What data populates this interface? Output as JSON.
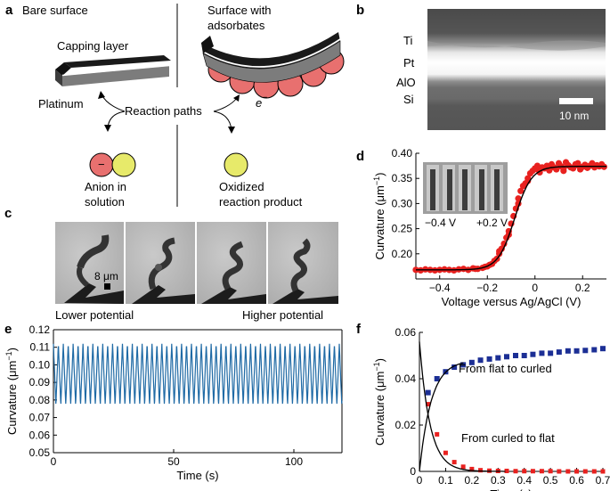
{
  "panel_labels": {
    "a": "a",
    "b": "b",
    "c": "c",
    "d": "d",
    "e": "e",
    "f": "f"
  },
  "panel_a": {
    "bare_surface": "Bare surface",
    "surface_with_adsorbates_1": "Surface with",
    "surface_with_adsorbates_2": "adsorbates",
    "capping_layer": "Capping layer",
    "platinum": "Platinum",
    "reaction_paths": "Reaction paths",
    "electron": "e",
    "electron_sup": "−",
    "anion_minus": "−",
    "anion_1": "Anion in",
    "anion_2": "solution",
    "oxidized_1": "Oxidized",
    "oxidized_2": "reaction product",
    "colors": {
      "anion": "#e8706f",
      "product": "#e7ea6a",
      "layer_dark": "#1a1a1a",
      "layer_grey": "#7c7c7c"
    }
  },
  "panel_b": {
    "ti": "Ti",
    "pt": "Pt",
    "alo": "AlO",
    "si": "Si",
    "scale": "10 nm"
  },
  "panel_c": {
    "scale": "8 μm",
    "lower": "Lower potential",
    "higher": "Higher potential"
  },
  "chart_data": [
    {
      "id": "d",
      "type": "scatter",
      "xlabel": "Voltage versus Ag/AgCl (V)",
      "ylabel": "Curvature (μm",
      "ylabel_sup": "−1",
      "ylabel_close": ")",
      "xlim": [
        -0.5,
        0.3
      ],
      "ylim": [
        0.15,
        0.4
      ],
      "xticks": [
        -0.4,
        -0.2,
        0,
        0.2
      ],
      "xtick_labels": [
        "−0.4",
        "−0.2",
        "0",
        "0.2"
      ],
      "yticks": [
        0.2,
        0.25,
        0.3,
        0.35,
        0.4
      ],
      "ytick_labels": [
        "0.20",
        "0.25",
        "0.30",
        "0.35",
        "0.40"
      ],
      "inset_left": "−0.4 V",
      "inset_right": "+0.2 V",
      "series": [
        {
          "name": "data",
          "color": "#e8211f",
          "x": [
            -0.5,
            -0.48,
            -0.46,
            -0.44,
            -0.42,
            -0.4,
            -0.38,
            -0.36,
            -0.34,
            -0.32,
            -0.3,
            -0.28,
            -0.26,
            -0.24,
            -0.22,
            -0.2,
            -0.19,
            -0.18,
            -0.17,
            -0.16,
            -0.15,
            -0.14,
            -0.13,
            -0.12,
            -0.11,
            -0.1,
            -0.09,
            -0.08,
            -0.07,
            -0.06,
            -0.05,
            -0.04,
            -0.03,
            -0.02,
            -0.01,
            0.0,
            0.01,
            0.02,
            0.03,
            0.04,
            0.05,
            0.06,
            0.07,
            0.08,
            0.09,
            0.1,
            0.11,
            0.12,
            0.13,
            0.14,
            0.15,
            0.16,
            0.17,
            0.18,
            0.19,
            0.2,
            0.21,
            0.22,
            0.23,
            0.24,
            0.25,
            0.26,
            0.27,
            0.28,
            0.29,
            -0.25,
            -0.21,
            -0.15,
            -0.11,
            -0.07,
            -0.03,
            0.01,
            0.06,
            0.12,
            0.18,
            0.24
          ],
          "y": [
            0.168,
            0.167,
            0.169,
            0.168,
            0.167,
            0.168,
            0.169,
            0.168,
            0.167,
            0.169,
            0.17,
            0.168,
            0.171,
            0.17,
            0.172,
            0.175,
            0.178,
            0.18,
            0.186,
            0.19,
            0.2,
            0.21,
            0.22,
            0.232,
            0.245,
            0.26,
            0.275,
            0.29,
            0.31,
            0.325,
            0.335,
            0.34,
            0.35,
            0.36,
            0.365,
            0.37,
            0.368,
            0.362,
            0.372,
            0.37,
            0.375,
            0.366,
            0.378,
            0.372,
            0.368,
            0.38,
            0.374,
            0.37,
            0.382,
            0.376,
            0.372,
            0.37,
            0.378,
            0.376,
            0.368,
            0.373,
            0.377,
            0.371,
            0.375,
            0.38,
            0.372,
            0.376,
            0.374,
            0.378,
            0.373,
            0.17,
            0.174,
            0.205,
            0.238,
            0.3,
            0.345,
            0.375,
            0.368,
            0.365,
            0.38,
            0.378
          ]
        },
        {
          "name": "fit",
          "color": "#000000",
          "type": "sigmoid",
          "low": 0.168,
          "high": 0.374,
          "center": -0.085,
          "width": 0.035
        }
      ]
    },
    {
      "id": "e",
      "type": "line",
      "xlabel": "Time (s)",
      "ylabel": "Curvature (μm",
      "ylabel_sup": "−1",
      "ylabel_close": ")",
      "xlim": [
        0,
        120
      ],
      "ylim": [
        0.05,
        0.12
      ],
      "xticks": [
        0,
        50,
        100
      ],
      "xtick_labels": [
        "0",
        "50",
        "100"
      ],
      "yticks": [
        0.05,
        0.06,
        0.07,
        0.08,
        0.09,
        0.1,
        0.11,
        0.12
      ],
      "ytick_labels": [
        "0.05",
        "0.06",
        "0.07",
        "0.08",
        "0.09",
        "0.10",
        "0.11",
        "0.12"
      ],
      "series": [
        {
          "name": "oscillation",
          "color": "#1f6aa5",
          "period_s": 2.05,
          "max": 0.112,
          "min": 0.077
        }
      ]
    },
    {
      "id": "f",
      "type": "scatter",
      "xlabel": "Time (s)",
      "ylabel": "Curvature (μm",
      "ylabel_sup": "−1",
      "ylabel_close": ")",
      "xlim": [
        0,
        0.7
      ],
      "ylim": [
        0,
        0.06
      ],
      "xticks": [
        0,
        0.1,
        0.2,
        0.3,
        0.4,
        0.5,
        0.6,
        0.7
      ],
      "xtick_labels": [
        "0",
        "0.1",
        "0.2",
        "0.3",
        "0.4",
        "0.5",
        "0.6",
        "0.7"
      ],
      "yticks": [
        0,
        0.02,
        0.04,
        0.06
      ],
      "ytick_labels": [
        "0",
        "0.02",
        "0.04",
        "0.06"
      ],
      "annotation_up": "From flat to curled",
      "annotation_down": "From curled to flat",
      "series": [
        {
          "name": "From flat to curled",
          "color": "#1c2f95",
          "x": [
            0.033,
            0.067,
            0.1,
            0.133,
            0.167,
            0.2,
            0.233,
            0.267,
            0.3,
            0.333,
            0.367,
            0.4,
            0.433,
            0.467,
            0.5,
            0.533,
            0.567,
            0.6,
            0.633,
            0.667,
            0.7
          ],
          "y": [
            0.034,
            0.04,
            0.043,
            0.045,
            0.046,
            0.047,
            0.048,
            0.0485,
            0.049,
            0.0495,
            0.05,
            0.05,
            0.0505,
            0.051,
            0.051,
            0.0515,
            0.052,
            0.052,
            0.0522,
            0.0525,
            0.053
          ]
        },
        {
          "name": "From curled to flat",
          "color": "#e8211f",
          "x": [
            0.033,
            0.067,
            0.1,
            0.133,
            0.167,
            0.2,
            0.233,
            0.267,
            0.3,
            0.333,
            0.367,
            0.4,
            0.433,
            0.467,
            0.5,
            0.533,
            0.567,
            0.6,
            0.633,
            0.667,
            0.7
          ],
          "y": [
            0.029,
            0.016,
            0.008,
            0.004,
            0.002,
            0.001,
            0.0005,
            0.0003,
            0.0002,
            0.0002,
            0.0001,
            0.0001,
            0.0001,
            0.0001,
            0.0001,
            0,
            0,
            0,
            0,
            0,
            0
          ]
        },
        {
          "name": "fit_up",
          "color": "#000000",
          "type": "rise",
          "amp": 0.048,
          "tau": 0.045,
          "tmax": 0.17
        },
        {
          "name": "fit_down",
          "color": "#000000",
          "type": "decay",
          "amp": 0.056,
          "tau": 0.04,
          "tmax": 0.33
        }
      ]
    }
  ]
}
